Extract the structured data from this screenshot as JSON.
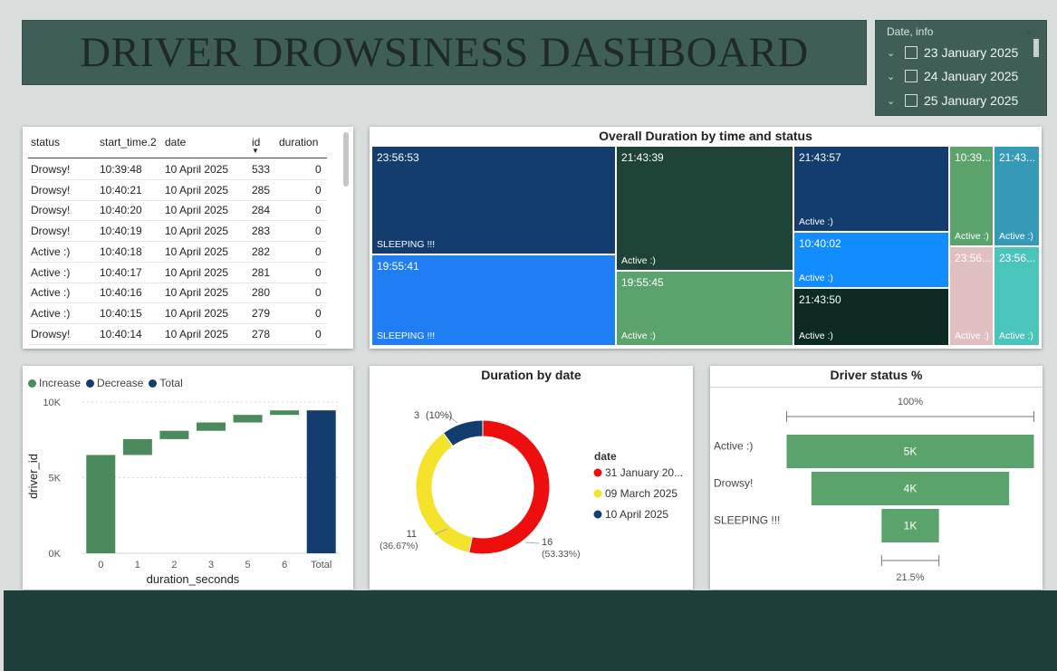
{
  "header": {
    "title": "DRIVER DROWSINESS DASHBOARD"
  },
  "slicer": {
    "title": "Date, info",
    "items": [
      "23 January 2025",
      "24 January 2025",
      "25 January 2025"
    ]
  },
  "table": {
    "columns": [
      "status",
      "start_time.2",
      "date",
      "id",
      "duration"
    ],
    "rows": [
      [
        "Drowsy!",
        "10:39:48",
        "10 April 2025",
        "533",
        "0"
      ],
      [
        "Drowsy!",
        "10:40:21",
        "10 April 2025",
        "285",
        "0"
      ],
      [
        "Drowsy!",
        "10:40:20",
        "10 April 2025",
        "284",
        "0"
      ],
      [
        "Drowsy!",
        "10:40:19",
        "10 April 2025",
        "283",
        "0"
      ],
      [
        "Active :)",
        "10:40:18",
        "10 April 2025",
        "282",
        "0"
      ],
      [
        "Active :)",
        "10:40:17",
        "10 April 2025",
        "281",
        "0"
      ],
      [
        "Active :)",
        "10:40:16",
        "10 April 2025",
        "280",
        "0"
      ],
      [
        "Active :)",
        "10:40:15",
        "10 April 2025",
        "279",
        "0"
      ],
      [
        "Drowsy!",
        "10:40:14",
        "10 April 2025",
        "278",
        "0"
      ]
    ]
  },
  "treemap": {
    "title": "Overall Duration by time and status",
    "tiles": [
      {
        "time": "23:56:53",
        "status": "SLEEPING !!!",
        "color": "#123d6e"
      },
      {
        "time": "19:55:41",
        "status": "SLEEPING !!!",
        "color": "#1f7ef4"
      },
      {
        "time": "21:43:39",
        "status": "Active :)",
        "color": "#1e4438"
      },
      {
        "time": "19:55:45",
        "status": "Active :)",
        "color": "#5aa36c"
      },
      {
        "time": "21:43:57",
        "status": "Active :)",
        "color": "#123d6e"
      },
      {
        "time": "10:40:02",
        "status": "Active :)",
        "color": "#118dff"
      },
      {
        "time": "21:43:50",
        "status": "Active :)",
        "color": "#0d2a25"
      },
      {
        "time": "10:39...",
        "status": "Active :)",
        "color": "#5aa36c"
      },
      {
        "time": "21:43...",
        "status": "Active :)",
        "color": "#3599b8"
      },
      {
        "time": "23:56...",
        "status": "Active :)",
        "color": "#dfbfbf"
      },
      {
        "time": "23:56...",
        "status": "Active :)",
        "color": "#4ac5bb"
      }
    ]
  },
  "chart_data": [
    {
      "type": "bar",
      "subtype": "waterfall",
      "legend": [
        "Increase",
        "Decrease",
        "Total"
      ],
      "colors": {
        "Increase": "#4a8a5c",
        "Decrease": "#123d6e",
        "Total": "#123d6e"
      },
      "categories": [
        "0",
        "1",
        "2",
        "3",
        "5",
        "6",
        "Total"
      ],
      "values": [
        6500,
        1050,
        550,
        550,
        500,
        300,
        9450
      ],
      "xlabel": "duration_seconds",
      "ylabel": "driver_id",
      "yticks": [
        "0K",
        "5K",
        "10K"
      ],
      "ylim": [
        0,
        10000
      ]
    },
    {
      "type": "pie",
      "subtype": "donut",
      "title": "Duration by date",
      "legend_title": "date",
      "labels": [
        "31 January 20...",
        "09 March 2025",
        "10 April 2025"
      ],
      "values": [
        16,
        11,
        3
      ],
      "data_labels": [
        {
          "value": "16",
          "pct": "(53.33%)"
        },
        {
          "value": "11",
          "pct": "(36.67%)"
        },
        {
          "value": "3",
          "pct": "(10%)"
        }
      ],
      "colors": [
        "#ee0e0e",
        "#f5e32b",
        "#123d6e"
      ]
    },
    {
      "type": "bar",
      "subtype": "funnel",
      "title": "Driver status %",
      "categories": [
        "Active :)",
        "Drowsy!",
        "SLEEPING !!!"
      ],
      "values": [
        5000,
        4000,
        1000
      ],
      "value_labels": [
        "5K",
        "4K",
        "1K"
      ],
      "top_label": "100%",
      "bottom_label": "21.5%",
      "color": "#5aa36c"
    }
  ]
}
